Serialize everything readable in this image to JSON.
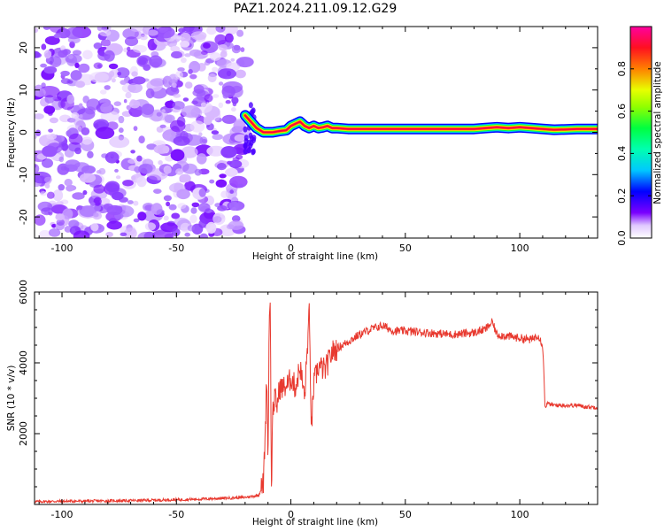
{
  "title": "PAZ1.2024.211.09.12.G29",
  "chart_data": [
    {
      "type": "heatmap",
      "xlabel": "Height of straight line (km)",
      "ylabel": "Frequency (Hz)",
      "xlim": [
        -112,
        134
      ],
      "ylim": [
        -25,
        25
      ],
      "xticks": [
        -100,
        -50,
        0,
        50,
        100
      ],
      "yticks": [
        -20,
        -10,
        0,
        10,
        20
      ],
      "noise_region": {
        "x_from": -112,
        "x_to": -20,
        "y_from": -25,
        "y_to": 25
      },
      "signal_line": {
        "x": [
          -20,
          -15,
          -12,
          -8,
          -5,
          -2,
          0,
          2,
          4,
          6,
          8,
          10,
          12,
          14,
          16,
          18,
          20,
          25,
          30,
          40,
          50,
          60,
          70,
          80,
          85,
          90,
          95,
          100,
          105,
          110,
          115,
          120,
          125,
          134
        ],
        "y": [
          4,
          1,
          0,
          0,
          0.3,
          0.5,
          1.5,
          2,
          2.5,
          1.5,
          1,
          1.5,
          1,
          1.2,
          1.5,
          1,
          1,
          0.8,
          0.8,
          0.8,
          0.8,
          0.8,
          0.8,
          0.8,
          1,
          1.2,
          1,
          1.2,
          1,
          0.8,
          0.6,
          0.7,
          0.8,
          0.8
        ]
      },
      "colorbar": {
        "label": "Normalized spectral amplitude",
        "ticks": [
          "0.0",
          "0.2",
          "0.4",
          "0.6",
          "0.8"
        ],
        "range": [
          0,
          1
        ],
        "colors": [
          "#ffffff",
          "#7a00ff",
          "#0000ff",
          "#00c8ff",
          "#00ff40",
          "#e8ff00",
          "#ff8000",
          "#ff0040",
          "#ff00a0"
        ]
      }
    },
    {
      "type": "line",
      "xlabel": "Height of straight line (km)",
      "ylabel": "SNR (10 * v/v)",
      "xlim": [
        -112,
        134
      ],
      "ylim": [
        0,
        6000
      ],
      "xticks": [
        -100,
        -50,
        0,
        50,
        100
      ],
      "yticks": [
        2000,
        4000,
        6000
      ],
      "color": "#e8392f",
      "series": [
        {
          "x": [
            -112,
            -100,
            -80,
            -60,
            -40,
            -20,
            -14,
            -12,
            -11,
            -10.5,
            -10,
            -9.5,
            -9,
            -8.5,
            -8,
            -7,
            -6,
            -5,
            -3,
            -1,
            0,
            2,
            4,
            6,
            8,
            9,
            10,
            12,
            15,
            18,
            20,
            25,
            30,
            35,
            40,
            45,
            50,
            60,
            70,
            80,
            85,
            88,
            90,
            95,
            100,
            105,
            108,
            110,
            110.5,
            111,
            112,
            115,
            120,
            125,
            130,
            134
          ],
          "y": [
            80,
            90,
            100,
            120,
            150,
            200,
            260,
            600,
            2500,
            3900,
            1000,
            5000,
            6000,
            200,
            2600,
            3000,
            2800,
            3300,
            3300,
            3400,
            3600,
            3300,
            3900,
            3000,
            5400,
            2100,
            3400,
            3900,
            3800,
            4300,
            4400,
            4600,
            4800,
            4950,
            5050,
            4900,
            4900,
            4850,
            4800,
            4850,
            4950,
            5150,
            4800,
            4750,
            4700,
            4650,
            4800,
            4500,
            3800,
            2750,
            2850,
            2800,
            2800,
            2800,
            2750,
            2750
          ]
        }
      ]
    }
  ]
}
